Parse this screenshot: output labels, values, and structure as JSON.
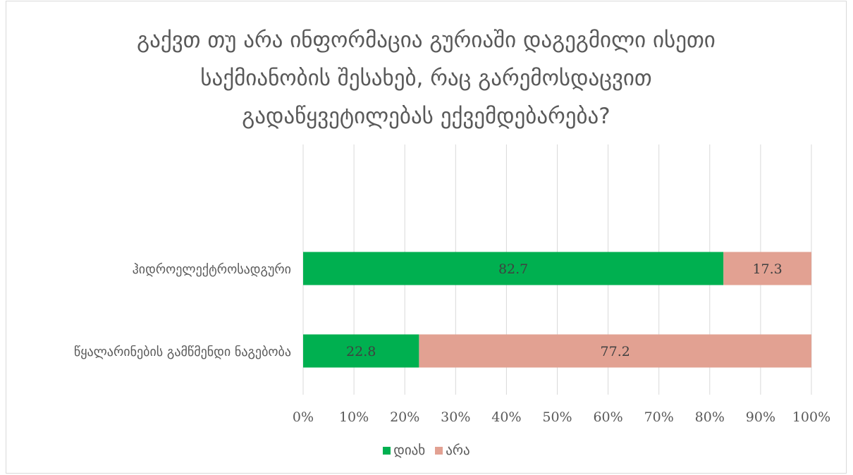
{
  "chart_data": {
    "type": "bar",
    "orientation": "horizontal",
    "stacked": true,
    "title_lines": [
      "გაქვთ თუ არა ინფორმაცია გურიაში დაგეგმილი ისეთი",
      "საქმიანობის შესახებ, რაც გარემოსდაცვით",
      "გადაწყვეტილებას ექვემდებარება?"
    ],
    "categories": [
      "ჰიდროელექტროსადგური",
      "წყალარინების გამწმენდი ნაგებობა"
    ],
    "series": [
      {
        "name": "დიახ",
        "color": "#00b050",
        "values": [
          82.7,
          22.8
        ]
      },
      {
        "name": "არა",
        "color": "#e2a192",
        "values": [
          17.3,
          77.2
        ]
      }
    ],
    "x_ticks": [
      "0%",
      "10%",
      "20%",
      "30%",
      "40%",
      "50%",
      "60%",
      "70%",
      "80%",
      "90%",
      "100%"
    ],
    "xlim": [
      0,
      100
    ],
    "grid": true,
    "legend_position": "bottom"
  }
}
